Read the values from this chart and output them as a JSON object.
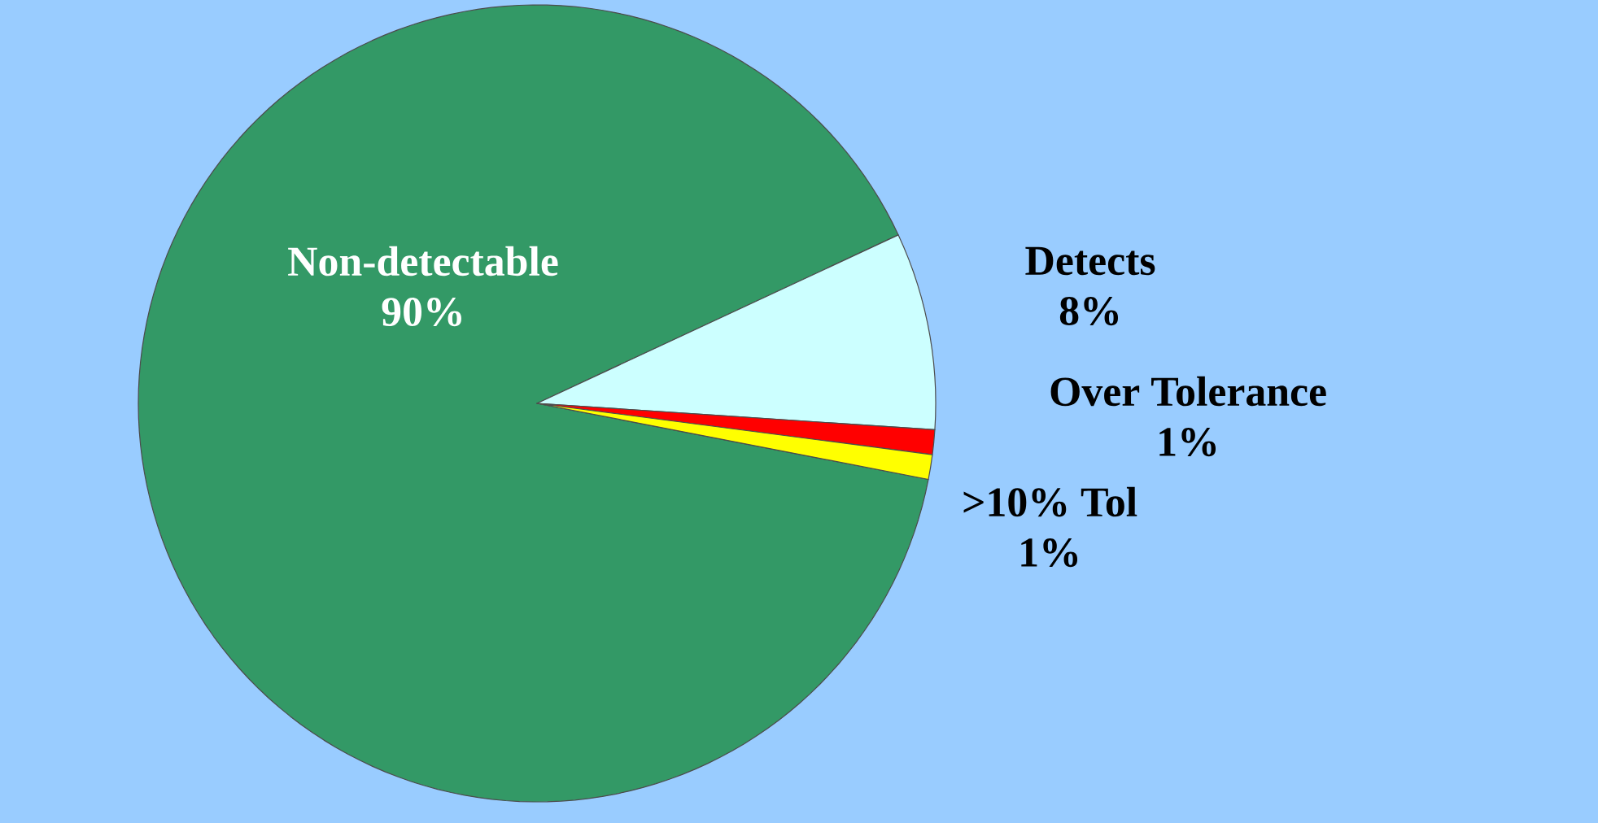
{
  "chart_data": {
    "type": "pie",
    "categories": [
      "Non-detectable",
      "Detects",
      "Over Tolerance",
      ">10% Tol"
    ],
    "values": [
      90,
      8,
      1,
      1
    ],
    "value_labels": [
      "90%",
      "8%",
      "1%",
      "1%"
    ],
    "colors": [
      "#339966",
      "#ccffff",
      "#ff0000",
      "#ffff00"
    ],
    "legend": false
  }
}
